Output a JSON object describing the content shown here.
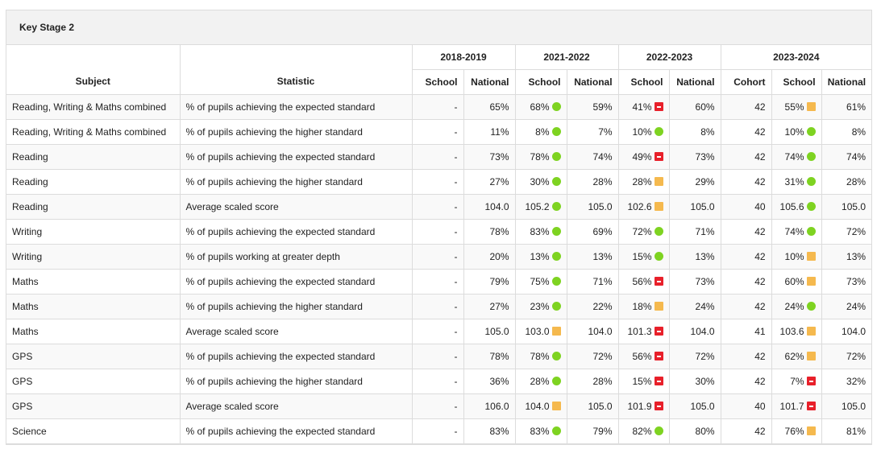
{
  "title": "Key Stage 2",
  "headers": {
    "subject": "Subject",
    "statistic": "Statistic",
    "years": [
      "2018-2019",
      "2021-2022",
      "2022-2023",
      "2023-2024"
    ],
    "school": "School",
    "national": "National",
    "cohort": "Cohort"
  },
  "indicator_colors": {
    "green": "#7ed321",
    "amber": "#f5b94e",
    "red": "#e8202a"
  },
  "rows": [
    {
      "subject": "Reading, Writing & Maths combined",
      "statistic": "% of pupils achieving the expected standard",
      "y1819_school": "-",
      "y1819_national": "65%",
      "y2122_school": "68%",
      "y2122_ind": "green",
      "y2122_national": "59%",
      "y2223_school": "41%",
      "y2223_ind": "red",
      "y2223_national": "60%",
      "cohort": "42",
      "y2324_school": "55%",
      "y2324_ind": "amber",
      "y2324_national": "61%"
    },
    {
      "subject": "Reading, Writing & Maths combined",
      "statistic": "% of pupils achieving the higher standard",
      "y1819_school": "-",
      "y1819_national": "11%",
      "y2122_school": "8%",
      "y2122_ind": "green",
      "y2122_national": "7%",
      "y2223_school": "10%",
      "y2223_ind": "green",
      "y2223_national": "8%",
      "cohort": "42",
      "y2324_school": "10%",
      "y2324_ind": "green",
      "y2324_national": "8%"
    },
    {
      "subject": "Reading",
      "statistic": "% of pupils achieving the expected standard",
      "y1819_school": "-",
      "y1819_national": "73%",
      "y2122_school": "78%",
      "y2122_ind": "green",
      "y2122_national": "74%",
      "y2223_school": "49%",
      "y2223_ind": "red",
      "y2223_national": "73%",
      "cohort": "42",
      "y2324_school": "74%",
      "y2324_ind": "green",
      "y2324_national": "74%"
    },
    {
      "subject": "Reading",
      "statistic": "% of pupils achieving the higher standard",
      "y1819_school": "-",
      "y1819_national": "27%",
      "y2122_school": "30%",
      "y2122_ind": "green",
      "y2122_national": "28%",
      "y2223_school": "28%",
      "y2223_ind": "amber",
      "y2223_national": "29%",
      "cohort": "42",
      "y2324_school": "31%",
      "y2324_ind": "green",
      "y2324_national": "28%"
    },
    {
      "subject": "Reading",
      "statistic": "Average scaled score",
      "y1819_school": "-",
      "y1819_national": "104.0",
      "y2122_school": "105.2",
      "y2122_ind": "green",
      "y2122_national": "105.0",
      "y2223_school": "102.6",
      "y2223_ind": "amber",
      "y2223_national": "105.0",
      "cohort": "40",
      "y2324_school": "105.6",
      "y2324_ind": "green",
      "y2324_national": "105.0"
    },
    {
      "subject": "Writing",
      "statistic": "% of pupils achieving the expected standard",
      "y1819_school": "-",
      "y1819_national": "78%",
      "y2122_school": "83%",
      "y2122_ind": "green",
      "y2122_national": "69%",
      "y2223_school": "72%",
      "y2223_ind": "green",
      "y2223_national": "71%",
      "cohort": "42",
      "y2324_school": "74%",
      "y2324_ind": "green",
      "y2324_national": "72%"
    },
    {
      "subject": "Writing",
      "statistic": "% of pupils working at greater depth",
      "y1819_school": "-",
      "y1819_national": "20%",
      "y2122_school": "13%",
      "y2122_ind": "green",
      "y2122_national": "13%",
      "y2223_school": "15%",
      "y2223_ind": "green",
      "y2223_national": "13%",
      "cohort": "42",
      "y2324_school": "10%",
      "y2324_ind": "amber",
      "y2324_national": "13%"
    },
    {
      "subject": "Maths",
      "statistic": "% of pupils achieving the expected standard",
      "y1819_school": "-",
      "y1819_national": "79%",
      "y2122_school": "75%",
      "y2122_ind": "green",
      "y2122_national": "71%",
      "y2223_school": "56%",
      "y2223_ind": "red",
      "y2223_national": "73%",
      "cohort": "42",
      "y2324_school": "60%",
      "y2324_ind": "amber",
      "y2324_national": "73%"
    },
    {
      "subject": "Maths",
      "statistic": "% of pupils achieving the higher standard",
      "y1819_school": "-",
      "y1819_national": "27%",
      "y2122_school": "23%",
      "y2122_ind": "green",
      "y2122_national": "22%",
      "y2223_school": "18%",
      "y2223_ind": "amber",
      "y2223_national": "24%",
      "cohort": "42",
      "y2324_school": "24%",
      "y2324_ind": "green",
      "y2324_national": "24%"
    },
    {
      "subject": "Maths",
      "statistic": "Average scaled score",
      "y1819_school": "-",
      "y1819_national": "105.0",
      "y2122_school": "103.0",
      "y2122_ind": "amber",
      "y2122_national": "104.0",
      "y2223_school": "101.3",
      "y2223_ind": "red",
      "y2223_national": "104.0",
      "cohort": "41",
      "y2324_school": "103.6",
      "y2324_ind": "amber",
      "y2324_national": "104.0"
    },
    {
      "subject": "GPS",
      "statistic": "% of pupils achieving the expected standard",
      "y1819_school": "-",
      "y1819_national": "78%",
      "y2122_school": "78%",
      "y2122_ind": "green",
      "y2122_national": "72%",
      "y2223_school": "56%",
      "y2223_ind": "red",
      "y2223_national": "72%",
      "cohort": "42",
      "y2324_school": "62%",
      "y2324_ind": "amber",
      "y2324_national": "72%"
    },
    {
      "subject": "GPS",
      "statistic": "% of pupils achieving the higher standard",
      "y1819_school": "-",
      "y1819_national": "36%",
      "y2122_school": "28%",
      "y2122_ind": "green",
      "y2122_national": "28%",
      "y2223_school": "15%",
      "y2223_ind": "red",
      "y2223_national": "30%",
      "cohort": "42",
      "y2324_school": "7%",
      "y2324_ind": "red",
      "y2324_national": "32%"
    },
    {
      "subject": "GPS",
      "statistic": "Average scaled score",
      "y1819_school": "-",
      "y1819_national": "106.0",
      "y2122_school": "104.0",
      "y2122_ind": "amber",
      "y2122_national": "105.0",
      "y2223_school": "101.9",
      "y2223_ind": "red",
      "y2223_national": "105.0",
      "cohort": "40",
      "y2324_school": "101.7",
      "y2324_ind": "red",
      "y2324_national": "105.0"
    },
    {
      "subject": "Science",
      "statistic": "% of pupils achieving the expected standard",
      "y1819_school": "-",
      "y1819_national": "83%",
      "y2122_school": "83%",
      "y2122_ind": "green",
      "y2122_national": "79%",
      "y2223_school": "82%",
      "y2223_ind": "green",
      "y2223_national": "80%",
      "cohort": "42",
      "y2324_school": "76%",
      "y2324_ind": "amber",
      "y2324_national": "81%"
    }
  ]
}
